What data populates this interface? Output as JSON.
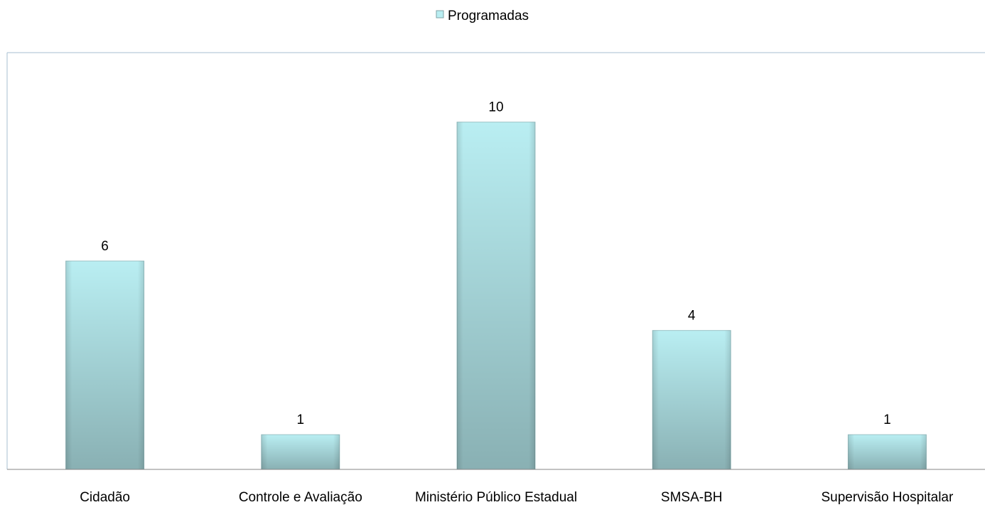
{
  "chart_data": {
    "type": "bar",
    "categories": [
      "Cidadão",
      "Controle e Avaliação",
      "Ministério Público Estadual",
      "SMSA-BH",
      "Supervisão Hospitalar"
    ],
    "series": [
      {
        "name": "Programadas",
        "color": "#b9eef2",
        "values": [
          6,
          1,
          10,
          4,
          1
        ]
      }
    ],
    "ylim": [
      0,
      12
    ],
    "legend": "top"
  }
}
